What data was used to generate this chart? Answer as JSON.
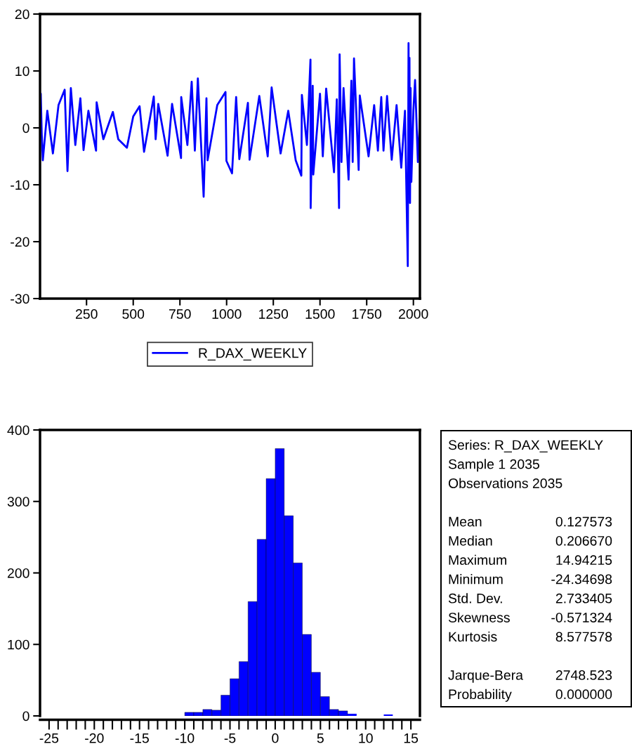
{
  "chart_data": [
    {
      "type": "line",
      "xlim": [
        1,
        2035
      ],
      "ylim": [
        -30,
        20
      ],
      "xticks": [
        250,
        500,
        750,
        1000,
        1250,
        1500,
        1750,
        2000
      ],
      "yticks": [
        -30,
        -20,
        -10,
        0,
        10,
        20
      ],
      "grid": false,
      "legend": "bottom",
      "marker": "none",
      "line_style": "solid",
      "series": [
        {
          "name": "R_DAX_WEEKLY",
          "color": "#0000ff",
          "x": [
            1,
            5,
            10,
            16,
            40,
            70,
            100,
            133,
            148,
            166,
            190,
            217,
            234,
            260,
            301,
            304,
            340,
            391,
            420,
            466,
            500,
            534,
            558,
            610,
            620,
            634,
            684,
            708,
            756,
            757,
            790,
            813,
            830,
            846,
            877,
            892,
            898,
            950,
            994,
            999,
            1029,
            1051,
            1068,
            1114,
            1123,
            1175,
            1220,
            1241,
            1289,
            1330,
            1370,
            1400,
            1403,
            1430,
            1449,
            1450,
            1461,
            1464,
            1500,
            1515,
            1533,
            1575,
            1590,
            1602,
            1605,
            1615,
            1626,
            1653,
            1668,
            1675,
            1682,
            1707,
            1713,
            1760,
            1790,
            1810,
            1828,
            1840,
            1859,
            1884,
            1910,
            1935,
            1955,
            1970,
            1974,
            1977,
            1979,
            1982,
            1985,
            1989,
            2000,
            2009,
            2024,
            2035
          ],
          "values": [
            0.5,
            6,
            -1,
            -5.7,
            3,
            -4.5,
            4,
            6.7,
            -7.6,
            7,
            -3,
            5.2,
            -3.9,
            3,
            -4,
            4.5,
            -2,
            2.8,
            -2,
            -3.5,
            2,
            3.8,
            -4.2,
            5.5,
            -2,
            4.2,
            -4.9,
            4.2,
            -5.3,
            5.4,
            -3,
            8.1,
            -4,
            8.7,
            -12.1,
            5.2,
            -5.7,
            4,
            6.3,
            -5.8,
            -8,
            5.4,
            -5.5,
            4.4,
            -5.6,
            5.6,
            -5,
            7.1,
            -4.5,
            3,
            -5.7,
            -8.4,
            5.8,
            -3,
            12,
            -14.1,
            7.4,
            -8.2,
            6,
            -5,
            6.9,
            -7.8,
            5,
            -14.1,
            12.9,
            -6,
            7,
            -9.1,
            8.3,
            -6,
            12.2,
            -7.4,
            5.7,
            -5,
            4,
            -4,
            5.4,
            -4,
            5.6,
            -5.6,
            4,
            -7,
            3,
            -24.3,
            14.9,
            -5,
            12.3,
            -13.2,
            7,
            -9.5,
            3,
            8.4,
            -6,
            1.5
          ]
        }
      ]
    },
    {
      "type": "histogram",
      "color": "#0000ff",
      "xlim": [
        -26,
        16
      ],
      "ylim": [
        0,
        400
      ],
      "yticks": [
        0,
        100,
        200,
        300,
        400
      ],
      "grid": false,
      "xticks": [
        -25,
        {
          "value": -24,
          "label": null
        },
        {
          "value": -23,
          "label": null
        },
        {
          "value": -22,
          "label": null
        },
        {
          "value": -21,
          "label": null
        },
        -20,
        {
          "value": -19,
          "label": null
        },
        {
          "value": -18,
          "label": null
        },
        {
          "value": -17,
          "label": null
        },
        {
          "value": -16,
          "label": null
        },
        -15,
        {
          "value": -14,
          "label": null
        },
        {
          "value": -13,
          "label": null
        },
        {
          "value": -12,
          "label": null
        },
        {
          "value": -11,
          "label": null
        },
        -10,
        {
          "value": -9,
          "label": null
        },
        {
          "value": -8,
          "label": null
        },
        {
          "value": -7,
          "label": null
        },
        {
          "value": -6,
          "label": null
        },
        -5,
        {
          "value": -4,
          "label": null
        },
        {
          "value": -3,
          "label": null
        },
        {
          "value": -2,
          "label": null
        },
        {
          "value": -1,
          "label": null
        },
        0,
        {
          "value": 1,
          "label": null
        },
        {
          "value": 2,
          "label": null
        },
        {
          "value": 3,
          "label": null
        },
        {
          "value": 4,
          "label": null
        },
        5,
        {
          "value": 6,
          "label": null
        },
        {
          "value": 7,
          "label": null
        },
        {
          "value": 8,
          "label": null
        },
        {
          "value": 9,
          "label": null
        },
        10,
        {
          "value": 11,
          "label": null
        },
        {
          "value": 12,
          "label": null
        },
        {
          "value": 13,
          "label": null
        },
        {
          "value": 14,
          "label": null
        },
        15
      ],
      "bins": [
        -10,
        -9,
        -8,
        -7,
        -6,
        -5,
        -4,
        -3,
        -2,
        -1,
        0,
        1,
        2,
        3,
        4,
        5,
        6,
        7,
        8,
        9,
        10,
        11,
        12,
        13
      ],
      "values": [
        5,
        5,
        9,
        8,
        29,
        52,
        76,
        160,
        247,
        332,
        374,
        280,
        214,
        114,
        61,
        27,
        9,
        7,
        3,
        0,
        0,
        0,
        2
      ]
    },
    {
      "type": "other",
      "annotations": [
        "Series: R_DAX_WEEKLY",
        "Sample 1 2035",
        "Observations 2035"
      ],
      "categories": [
        "Mean",
        "Median",
        "Maximum",
        "Minimum",
        "Std. Dev.",
        "Skewness",
        "Kurtosis",
        null,
        "Jarque-Bera",
        "Probability"
      ],
      "values": [
        0.127573,
        0.20667,
        14.94215,
        -24.34698,
        2.733405,
        -0.571324,
        8.577578,
        null,
        2748.523,
        0.0
      ],
      "value_labels": [
        "0.127573",
        "0.206670",
        "14.94215",
        "-24.34698",
        "2.733405",
        "-0.571324",
        "8.577578",
        null,
        "2748.523",
        "0.000000"
      ]
    }
  ]
}
